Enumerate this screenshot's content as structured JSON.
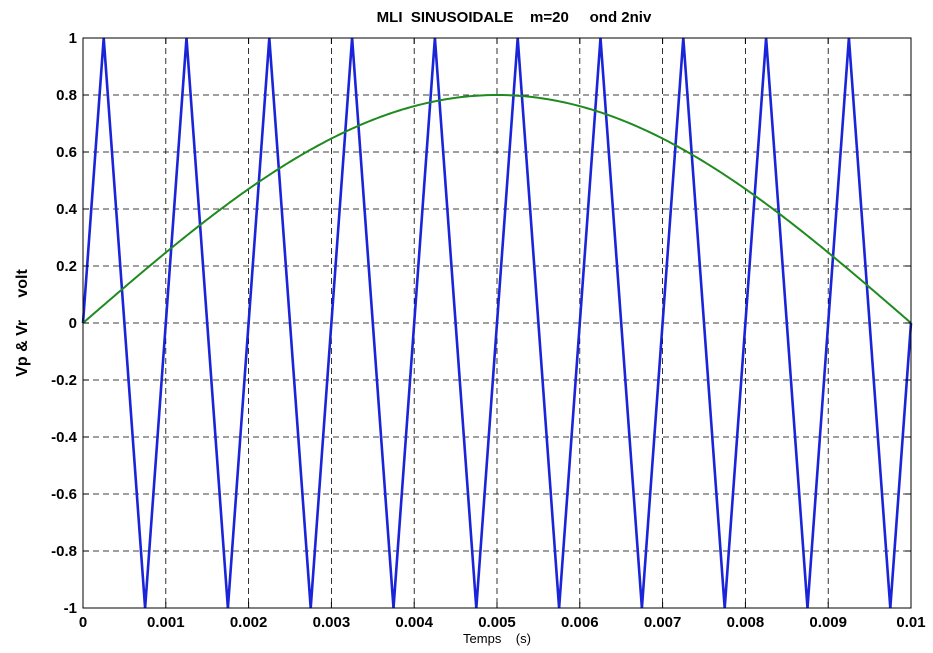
{
  "chart_data": {
    "type": "line",
    "title": "MLI  SINUSOIDALE    m=20     ond 2niv",
    "xlabel": "Temps    (s)",
    "ylabel": "Vp & Vr     volt",
    "xlim": [
      0,
      0.01
    ],
    "ylim": [
      -1,
      1
    ],
    "grid": true,
    "x_ticks": [
      "0",
      "0.001",
      "0.002",
      "0.003",
      "0.004",
      "0.005",
      "0.006",
      "0.007",
      "0.008",
      "0.009",
      "0.01"
    ],
    "y_ticks": [
      "1",
      "0.8",
      "0.6",
      "0.4",
      "0.2",
      "0",
      "-0.2",
      "-0.4",
      "-0.6",
      "-0.8",
      "-1"
    ],
    "series": [
      {
        "color": "#1a24d8",
        "style": "triangular carrier",
        "x": [
          0,
          0.00025,
          0.00075,
          0.00125,
          0.00175,
          0.00225,
          0.00275,
          0.00325,
          0.00375,
          0.00425,
          0.00475,
          0.00525,
          0.00575,
          0.00625,
          0.00675,
          0.00725,
          0.00775,
          0.00825,
          0.00875,
          0.00925,
          0.00975,
          0.01
        ],
        "values": [
          0,
          1,
          -1,
          1,
          -1,
          1,
          -1,
          1,
          -1,
          1,
          -1,
          1,
          -1,
          1,
          -1,
          1,
          -1,
          1,
          -1,
          1,
          -1,
          0
        ]
      },
      {
        "color": "#1f8a1f",
        "style": "sinusoidal reference",
        "amplitude": 0.8,
        "x": [
          0,
          0.0005,
          0.001,
          0.0015,
          0.002,
          0.0025,
          0.003,
          0.0035,
          0.004,
          0.0045,
          0.005,
          0.0055,
          0.006,
          0.0065,
          0.007,
          0.0075,
          0.008,
          0.0085,
          0.009,
          0.0095,
          0.01
        ],
        "values": [
          0,
          0.125,
          0.247,
          0.363,
          0.47,
          0.566,
          0.647,
          0.713,
          0.761,
          0.79,
          0.8,
          0.79,
          0.761,
          0.713,
          0.647,
          0.566,
          0.47,
          0.363,
          0.247,
          0.125,
          0
        ]
      }
    ]
  }
}
